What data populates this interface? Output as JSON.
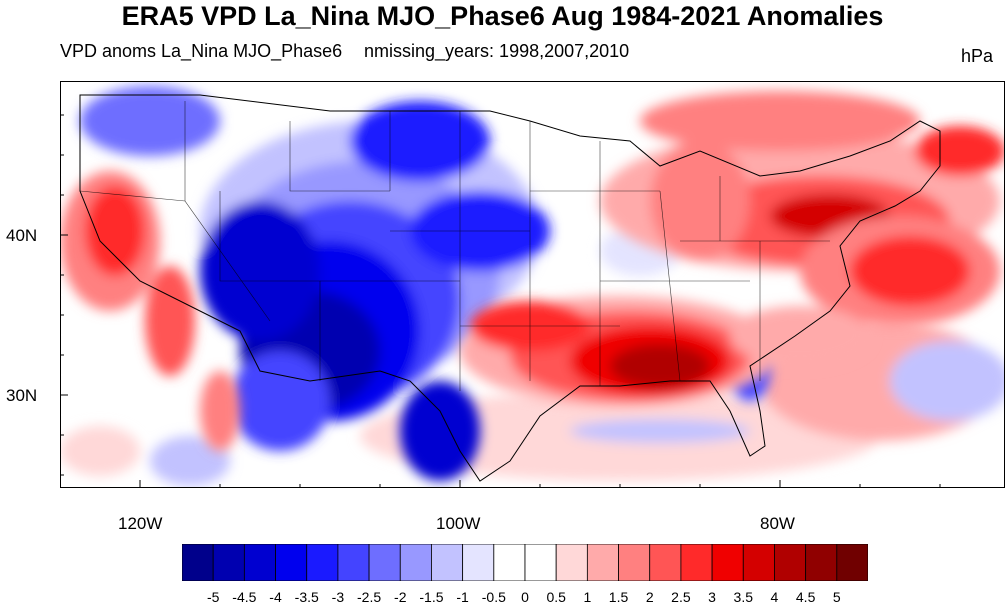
{
  "header": {
    "title": "ERA5 VPD La_Nina MJO_Phase6 Aug 1984-2021 Anomalies",
    "left_subtitle": "VPD anoms La_Nina MJO_Phase6",
    "center_subtitle": "nmissing_years: 1998,2007,2010",
    "units": "hPa"
  },
  "map": {
    "region": "Contiguous United States",
    "lat_labels": [
      "40N",
      "30N"
    ],
    "lon_labels": [
      "120W",
      "100W",
      "80W"
    ],
    "anomaly_regions": [
      {
        "area": "West coast / California",
        "sign": "positive",
        "approx_hPa": 3
      },
      {
        "area": "Interior West / Great Basin / Rockies",
        "sign": "negative",
        "approx_hPa": -5
      },
      {
        "area": "Northern / Central Plains",
        "sign": "negative",
        "approx_hPa": -3
      },
      {
        "area": "Southern states (TX to GA)",
        "sign": "positive",
        "approx_hPa": 5
      },
      {
        "area": "Northeast / Mid-Atlantic",
        "sign": "positive",
        "approx_hPa": 4
      },
      {
        "area": "Upper Great Lakes",
        "sign": "positive",
        "approx_hPa": 3
      },
      {
        "area": "Western Atlantic off Mid-Atlantic",
        "sign": "positive",
        "approx_hPa": 3
      }
    ]
  },
  "colorbar": {
    "labels": [
      "-5",
      "-4.5",
      "-4",
      "-3.5",
      "-3",
      "-2.5",
      "-2",
      "-1.5",
      "-1",
      "-0.5",
      "0",
      "0.5",
      "1",
      "1.5",
      "2",
      "2.5",
      "3",
      "3.5",
      "4",
      "4.5",
      "5"
    ],
    "colors": [
      "#00008b",
      "#0000b0",
      "#0000d0",
      "#0000ee",
      "#1a1aff",
      "#4444ff",
      "#6e6eff",
      "#9898ff",
      "#c2c2ff",
      "#e4e4ff",
      "#ffffff",
      "#ffffff",
      "#ffd8d8",
      "#ffaaaa",
      "#ff8080",
      "#ff5555",
      "#ff2a2a",
      "#f00000",
      "#d40000",
      "#b00000",
      "#900000",
      "#700000"
    ]
  }
}
